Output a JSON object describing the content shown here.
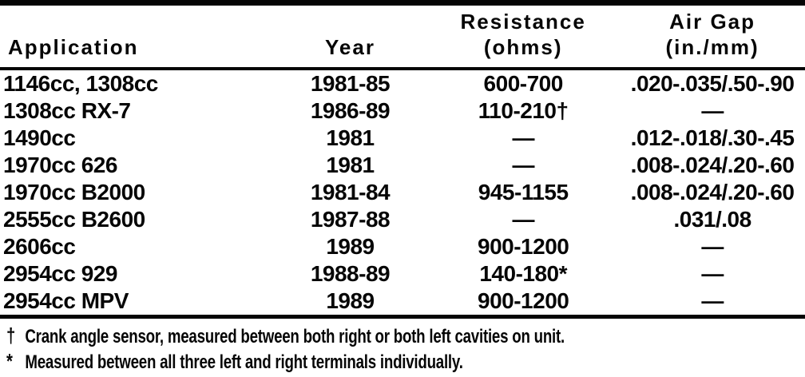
{
  "colors": {
    "ink": "#050505",
    "paper": "#ffffff"
  },
  "document": {
    "table": {
      "columns": [
        {
          "label": "Application"
        },
        {
          "label": "Year"
        },
        {
          "label": "Resistance",
          "sublabel": "(ohms)"
        },
        {
          "label": "Air Gap",
          "sublabel": "(in./mm)"
        }
      ],
      "rows": [
        {
          "application": "1146cc, 1308cc",
          "year": "1981-85",
          "resistance": "600-700",
          "air_gap": ".020-.035/.50-.90"
        },
        {
          "application": "1308cc RX-7",
          "year": "1986-89",
          "resistance": "110-210†",
          "air_gap": "—"
        },
        {
          "application": "1490cc",
          "year": "1981",
          "resistance": "—",
          "air_gap": ".012-.018/.30-.45"
        },
        {
          "application": "1970cc 626",
          "year": "1981",
          "resistance": "—",
          "air_gap": ".008-.024/.20-.60"
        },
        {
          "application": "1970cc B2000",
          "year": "1981-84",
          "resistance": "945-1155",
          "air_gap": ".008-.024/.20-.60"
        },
        {
          "application": "2555cc B2600",
          "year": "1987-88",
          "resistance": "—",
          "air_gap": ".031/.08"
        },
        {
          "application": "2606cc",
          "year": "1989",
          "resistance": "900-1200",
          "air_gap": "—"
        },
        {
          "application": "2954cc 929",
          "year": "1988-89",
          "resistance": "140-180*",
          "air_gap": "—"
        },
        {
          "application": "2954cc MPV",
          "year": "1989",
          "resistance": "900-1200",
          "air_gap": "—"
        }
      ]
    },
    "footnotes": [
      {
        "marker": "†",
        "text": "Crank angle sensor, measured between both right or both left cavities on unit."
      },
      {
        "marker": "*",
        "text": "Measured between all three left and right terminals individually."
      }
    ]
  }
}
